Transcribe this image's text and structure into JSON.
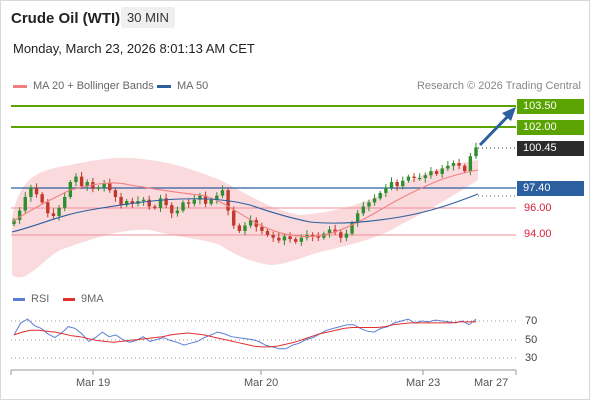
{
  "header": {
    "instrument": "Crude Oil (WTI)",
    "timeframe": "30 MIN",
    "timestamp": "Monday, March 23, 2026 8:01:13 AM CET"
  },
  "legend": {
    "ma20_label": "MA 20 + Bollinger Bands",
    "ma50_label": "MA 50",
    "ma20_color": "#f08080",
    "ma50_color": "#2c5fa0",
    "credit": "Research © 2026 Trading Central"
  },
  "levels": {
    "target2": "103.50",
    "target1": "102.00",
    "last": "100.45",
    "pivot": "97.40",
    "support1": "96.00",
    "support2": "94.00",
    "target_color": "#5aa300",
    "pivot_color": "#2c5fa0",
    "support_color": "#e04a5a",
    "last_color": "#2b2b2b"
  },
  "rsi_legend": {
    "rsi_label": "RSI",
    "ma_label": "9MA",
    "rsi_color": "#5b7fd6",
    "ma_color": "#e03030"
  },
  "rsi_axis": [
    "70",
    "50",
    "30"
  ],
  "x_axis": [
    "Mar 19",
    "Mar 20",
    "Mar 23",
    "Mar 27"
  ],
  "chart_data": {
    "type": "candlestick",
    "x_ticks": [
      "Mar 19",
      "Mar 20",
      "Mar 23",
      "Mar 27"
    ],
    "price_levels": [
      103.5,
      102.0,
      100.45,
      97.4,
      96.0,
      94.0
    ],
    "close": [
      95.1,
      95.8,
      96.8,
      97.5,
      97.0,
      96.4,
      95.6,
      95.4,
      96.0,
      96.8,
      97.9,
      98.3,
      97.6,
      97.9,
      97.4,
      97.5,
      97.8,
      97.3,
      96.8,
      96.2,
      96.5,
      96.3,
      96.5,
      96.6,
      96.1,
      96.0,
      96.7,
      96.2,
      95.6,
      95.8,
      96.4,
      96.3,
      96.6,
      96.9,
      96.3,
      96.6,
      96.9,
      97.3,
      95.8,
      94.7,
      94.3,
      94.7,
      95.1,
      94.6,
      94.3,
      94.0,
      93.8,
      93.6,
      93.9,
      93.7,
      93.5,
      93.8,
      94.0,
      93.9,
      93.8,
      94.1,
      94.4,
      94.2,
      93.8,
      94.1,
      94.9,
      95.6,
      96.1,
      96.4,
      96.7,
      97.1,
      97.5,
      97.9,
      97.6,
      98.0,
      98.3,
      98.2,
      98.2,
      98.4,
      98.7,
      98.5,
      98.9,
      99.1,
      99.3,
      99.1,
      98.7,
      99.8,
      100.45
    ],
    "rsi": [
      55,
      68,
      72,
      65,
      62,
      56,
      52,
      57,
      64,
      62,
      56,
      48,
      52,
      58,
      53,
      55,
      50,
      47,
      49,
      53,
      48,
      50,
      52,
      49,
      47,
      44,
      46,
      48,
      52,
      55,
      58,
      56,
      53,
      52,
      51,
      50,
      48,
      44,
      42,
      40,
      40,
      44,
      46,
      50,
      52,
      56,
      60,
      62,
      64,
      66,
      66,
      62,
      59,
      58,
      62,
      64,
      68,
      70,
      72,
      68,
      70,
      69,
      71,
      70,
      69,
      68,
      70,
      66,
      72
    ],
    "rsi_ma": [
      55,
      58,
      60,
      60,
      59,
      58,
      56,
      54,
      53,
      51,
      49,
      48,
      47,
      48,
      49,
      50,
      51,
      52,
      53,
      55,
      56,
      57,
      56,
      55,
      53,
      51,
      49,
      47,
      45,
      43,
      42,
      42,
      43,
      45,
      47,
      50,
      53,
      56,
      58,
      60,
      62,
      63,
      63,
      63,
      63,
      64,
      66,
      67,
      68,
      68,
      68,
      68,
      68,
      68,
      69,
      69,
      69
    ],
    "rsi_levels": [
      70,
      50,
      30
    ]
  }
}
